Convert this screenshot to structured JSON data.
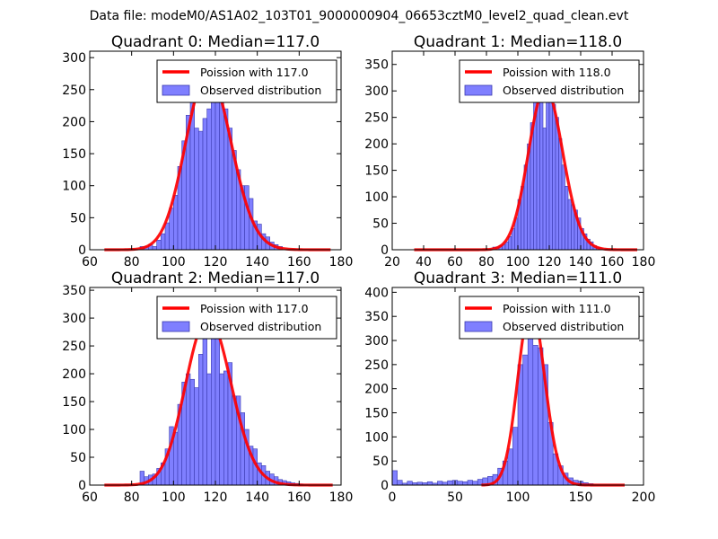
{
  "suptitle": "Data file: modeM0/AS1A02_103T01_9000000904_06653cztM0_level2_quad_clean.evt",
  "colors": {
    "hist_fill": "#7f7fff",
    "hist_edge": "#3a3ab0",
    "poisson_line": "#ff0000",
    "axes": "#000000",
    "background": "#ffffff"
  },
  "chart_data": [
    {
      "type": "bar",
      "title": "Quadrant 0: Median=117.0",
      "xlim": [
        60,
        180
      ],
      "ylim": [
        0,
        310
      ],
      "xticks": [
        60,
        80,
        100,
        120,
        140,
        160,
        180
      ],
      "yticks": [
        0,
        50,
        100,
        150,
        200,
        250,
        300
      ],
      "bin_width": 2,
      "bins": [
        [
          84,
          5
        ],
        [
          86,
          5
        ],
        [
          88,
          8
        ],
        [
          90,
          5
        ],
        [
          92,
          15
        ],
        [
          94,
          25
        ],
        [
          96,
          42
        ],
        [
          98,
          65
        ],
        [
          100,
          85
        ],
        [
          102,
          130
        ],
        [
          104,
          170
        ],
        [
          106,
          210
        ],
        [
          108,
          255
        ],
        [
          110,
          190
        ],
        [
          112,
          185
        ],
        [
          114,
          205
        ],
        [
          116,
          220
        ],
        [
          118,
          235
        ],
        [
          120,
          295
        ],
        [
          122,
          280
        ],
        [
          124,
          220
        ],
        [
          126,
          190
        ],
        [
          128,
          155
        ],
        [
          130,
          125
        ],
        [
          132,
          100
        ],
        [
          134,
          100
        ],
        [
          136,
          80
        ],
        [
          138,
          45
        ],
        [
          140,
          40
        ],
        [
          142,
          25
        ],
        [
          144,
          20
        ],
        [
          146,
          12
        ],
        [
          148,
          8
        ],
        [
          150,
          5
        ]
      ],
      "poisson_lambda": 117,
      "poisson_x": [
        67,
        175
      ],
      "legend": {
        "position": "top-right",
        "line_label": "Poission with 117.0",
        "bar_label": "Observed distribution"
      }
    },
    {
      "type": "bar",
      "title": "Quadrant 1: Median=118.0",
      "xlim": [
        20,
        180
      ],
      "ylim": [
        0,
        375
      ],
      "xticks": [
        20,
        40,
        60,
        80,
        100,
        120,
        140,
        160,
        180
      ],
      "yticks": [
        0,
        50,
        100,
        150,
        200,
        250,
        300,
        350
      ],
      "bin_width": 2,
      "bins": [
        [
          84,
          5
        ],
        [
          86,
          5
        ],
        [
          88,
          8
        ],
        [
          90,
          10
        ],
        [
          92,
          15
        ],
        [
          94,
          25
        ],
        [
          96,
          40
        ],
        [
          98,
          60
        ],
        [
          100,
          95
        ],
        [
          102,
          120
        ],
        [
          104,
          160
        ],
        [
          106,
          200
        ],
        [
          108,
          240
        ],
        [
          110,
          280
        ],
        [
          112,
          300
        ],
        [
          114,
          280
        ],
        [
          116,
          230
        ],
        [
          118,
          340
        ],
        [
          120,
          295
        ],
        [
          122,
          275
        ],
        [
          124,
          250
        ],
        [
          126,
          210
        ],
        [
          128,
          160
        ],
        [
          130,
          120
        ],
        [
          132,
          95
        ],
        [
          134,
          85
        ],
        [
          136,
          75
        ],
        [
          138,
          60
        ],
        [
          140,
          40
        ],
        [
          142,
          30
        ],
        [
          144,
          20
        ],
        [
          146,
          15
        ],
        [
          148,
          8
        ],
        [
          150,
          5
        ],
        [
          152,
          3
        ]
      ],
      "poisson_lambda": 118,
      "poisson_x": [
        34,
        176
      ],
      "legend": {
        "position": "top-right",
        "line_label": "Poission with 118.0",
        "bar_label": "Observed distribution"
      }
    },
    {
      "type": "bar",
      "title": "Quadrant 2: Median=117.0",
      "xlim": [
        60,
        180
      ],
      "ylim": [
        0,
        355
      ],
      "xticks": [
        60,
        80,
        100,
        120,
        140,
        160,
        180
      ],
      "yticks": [
        0,
        50,
        100,
        150,
        200,
        250,
        300,
        350
      ],
      "bin_width": 2,
      "bins": [
        [
          84,
          25
        ],
        [
          86,
          15
        ],
        [
          88,
          18
        ],
        [
          90,
          20
        ],
        [
          92,
          30
        ],
        [
          94,
          40
        ],
        [
          96,
          65
        ],
        [
          98,
          105
        ],
        [
          100,
          95
        ],
        [
          102,
          145
        ],
        [
          104,
          185
        ],
        [
          106,
          200
        ],
        [
          108,
          190
        ],
        [
          110,
          175
        ],
        [
          112,
          235
        ],
        [
          114,
          275
        ],
        [
          116,
          200
        ],
        [
          118,
          300
        ],
        [
          120,
          285
        ],
        [
          122,
          200
        ],
        [
          124,
          205
        ],
        [
          126,
          220
        ],
        [
          128,
          160
        ],
        [
          130,
          160
        ],
        [
          132,
          130
        ],
        [
          134,
          100
        ],
        [
          136,
          70
        ],
        [
          138,
          65
        ],
        [
          140,
          40
        ],
        [
          142,
          35
        ],
        [
          144,
          25
        ],
        [
          146,
          20
        ],
        [
          148,
          15
        ],
        [
          150,
          10
        ],
        [
          152,
          8
        ],
        [
          154,
          6
        ],
        [
          156,
          4
        ],
        [
          158,
          3
        ],
        [
          160,
          2
        ]
      ],
      "poisson_lambda": 117,
      "poisson_x": [
        67,
        176
      ],
      "legend": {
        "position": "top-right",
        "line_label": "Poission with 117.0",
        "bar_label": "Observed distribution"
      }
    },
    {
      "type": "bar",
      "title": "Quadrant 3: Median=111.0",
      "xlim": [
        0,
        200
      ],
      "ylim": [
        0,
        410
      ],
      "xticks": [
        0,
        50,
        100,
        150,
        200
      ],
      "yticks": [
        0,
        50,
        100,
        150,
        200,
        250,
        300,
        350,
        400
      ],
      "bin_width": 4,
      "bins": [
        [
          0,
          30
        ],
        [
          4,
          10
        ],
        [
          8,
          4
        ],
        [
          12,
          8
        ],
        [
          16,
          5
        ],
        [
          20,
          6
        ],
        [
          24,
          5
        ],
        [
          28,
          7
        ],
        [
          32,
          4
        ],
        [
          36,
          8
        ],
        [
          40,
          6
        ],
        [
          44,
          9
        ],
        [
          48,
          10
        ],
        [
          52,
          8
        ],
        [
          56,
          7
        ],
        [
          60,
          10
        ],
        [
          64,
          8
        ],
        [
          68,
          12
        ],
        [
          72,
          15
        ],
        [
          76,
          18
        ],
        [
          80,
          22
        ],
        [
          84,
          35
        ],
        [
          88,
          50
        ],
        [
          92,
          75
        ],
        [
          96,
          120
        ],
        [
          100,
          250
        ],
        [
          104,
          270
        ],
        [
          108,
          320
        ],
        [
          112,
          290
        ],
        [
          116,
          285
        ],
        [
          120,
          250
        ],
        [
          124,
          130
        ],
        [
          128,
          65
        ],
        [
          132,
          40
        ],
        [
          136,
          25
        ],
        [
          140,
          15
        ],
        [
          144,
          10
        ],
        [
          148,
          8
        ],
        [
          152,
          5
        ],
        [
          156,
          3
        ]
      ],
      "poisson_lambda": 111,
      "poisson_x": [
        71,
        185
      ],
      "legend": {
        "position": "top-right",
        "line_label": "Poission with 111.0",
        "bar_label": "Observed distribution"
      }
    }
  ]
}
